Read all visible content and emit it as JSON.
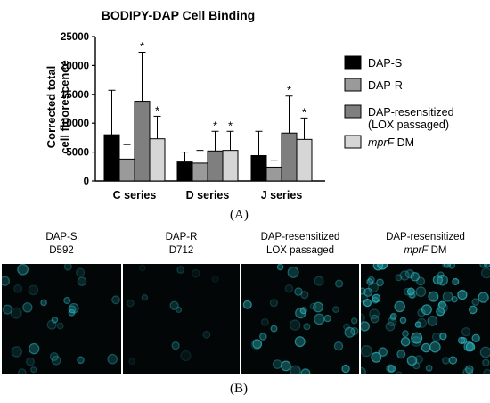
{
  "chart_data": {
    "type": "bar",
    "title": "BODIPY-DAP  Cell Binding",
    "ylabel": "Corrected total cell fluorescence",
    "xlabel": "",
    "ylim": [
      0,
      25000
    ],
    "yticks": [
      0,
      5000,
      10000,
      15000,
      20000,
      25000
    ],
    "categories": [
      "C series",
      "D series",
      "J series"
    ],
    "series": [
      {
        "name": "DAP-S",
        "color": "#000000",
        "values": [
          8000,
          3300,
          4400
        ],
        "errors": [
          7700,
          1700,
          4200
        ],
        "significant": [
          false,
          false,
          false
        ]
      },
      {
        "name": "DAP-R",
        "color": "#9a9a9a",
        "values": [
          3800,
          3100,
          2400
        ],
        "errors": [
          2500,
          2200,
          1200
        ],
        "significant": [
          false,
          false,
          false
        ]
      },
      {
        "name": "DAP-resensitized (LOX passaged)",
        "color": "#7f7f7f",
        "values": [
          13800,
          5200,
          8300
        ],
        "errors": [
          8500,
          3400,
          6400
        ],
        "significant": [
          true,
          true,
          true
        ]
      },
      {
        "name": "mprF DM",
        "color": "#d6d6d6",
        "values": [
          7300,
          5300,
          7200
        ],
        "errors": [
          3900,
          3300,
          3700
        ],
        "significant": [
          true,
          true,
          true
        ]
      }
    ],
    "legend": [
      {
        "text": "DAP-S",
        "italic_prefix": ""
      },
      {
        "text": "DAP-R",
        "italic_prefix": ""
      },
      {
        "text": "DAP-resensitized",
        "text2": "(LOX passaged)",
        "italic_prefix": ""
      },
      {
        "text": " DM",
        "italic_prefix": "mprF"
      }
    ],
    "legend_placement": "right",
    "significance_marker": "*",
    "grid": false
  },
  "panels": {
    "a_label": "(A)",
    "b_label": "(B)"
  },
  "micrographs": [
    {
      "line1": "DAP-S",
      "line2": "D592",
      "line2_italic": "",
      "density": 28,
      "brightness": 0.55
    },
    {
      "line1": "DAP-R",
      "line2": "D712",
      "line2_italic": "",
      "density": 12,
      "brightness": 0.4
    },
    {
      "line1": "DAP-resensitized",
      "line2": "LOX passaged",
      "line2_italic": "",
      "density": 34,
      "brightness": 0.7
    },
    {
      "line1": "DAP-resensitized",
      "line2": " DM",
      "line2_italic": "mprF",
      "density": 90,
      "brightness": 0.85
    }
  ],
  "colors": {
    "cell_fluorescence": "#2bb7bf",
    "micrograph_background": "#030607"
  }
}
